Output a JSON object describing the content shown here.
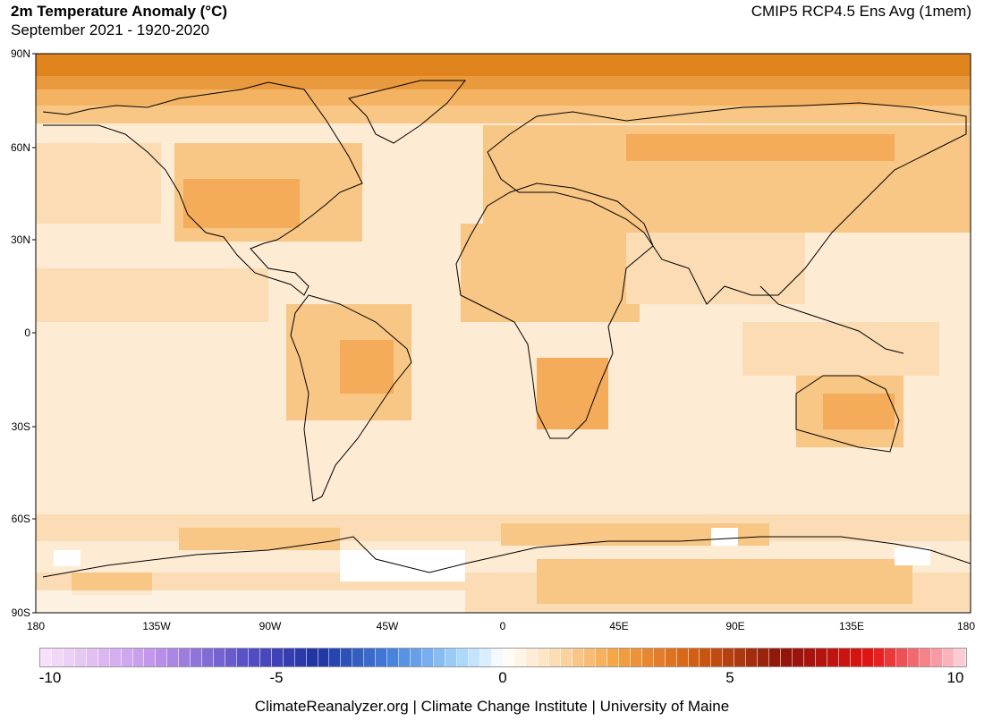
{
  "header": {
    "title": "2m Temperature Anomaly (°C)",
    "subtitle": "September 2021 - 1920-2020",
    "model": "CMIP5 RCP4.5 Ens Avg (1mem)"
  },
  "map": {
    "lat_labels": [
      "90N",
      "60N",
      "30N",
      "0",
      "30S",
      "60S",
      "90S"
    ],
    "lon_labels": [
      "180",
      "135W",
      "90W",
      "45W",
      "0",
      "45E",
      "90E",
      "135E",
      "180"
    ],
    "colors": {
      "ocean": "#fdebd3",
      "light": "#fbdcb4",
      "mid": "#f8c685",
      "strong": "#f4ab5a",
      "arctic": "#e0841e",
      "white": "#ffffff",
      "coast": "#000000"
    }
  },
  "colorbar": {
    "ticks": [
      "-10",
      "-5",
      "0",
      "5",
      "10"
    ],
    "min": -10,
    "max": 10
  },
  "footer": {
    "credit": "ClimateReanalyzer.org | Climate Change Institute | University of Maine"
  }
}
